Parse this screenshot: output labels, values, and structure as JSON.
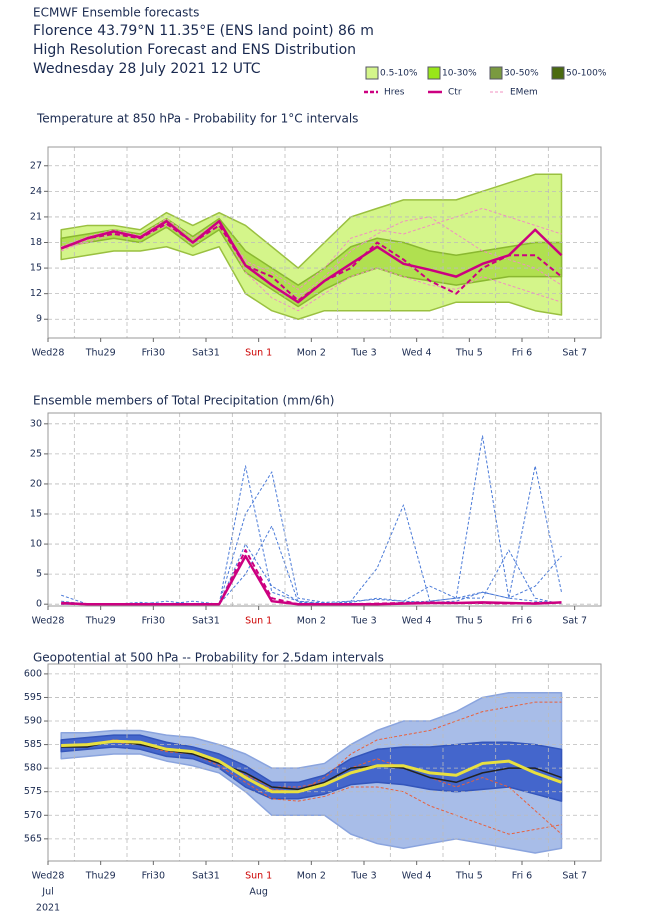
{
  "header": {
    "lines": [
      "ECMWF Ensemble forecasts",
      "Florence 43.79°N 11.35°E (ENS land point) 86 m",
      "High Resolution Forecast and ENS Distribution",
      "Wednesday 28 July 2021 12 UTC"
    ]
  },
  "legend": [
    {
      "label": "0.5-10%",
      "color": "#d4f58a",
      "style": "box"
    },
    {
      "label": "10-30%",
      "color": "#99e619",
      "style": "box"
    },
    {
      "label": "30-50%",
      "color": "#7a9a40",
      "style": "box"
    },
    {
      "label": "50-100%",
      "color": "#4a6a10",
      "style": "box"
    },
    {
      "label": "Hres",
      "color": "#cc0080",
      "style": "dashed"
    },
    {
      "label": "Ctr",
      "color": "#cc0080",
      "style": "solid"
    },
    {
      "label": "EMem",
      "color": "#f090c0",
      "style": "thin-dashed"
    }
  ],
  "chart_data": [
    {
      "type": "line",
      "title": "Temperature at 850 hPa - Probability for 1°C intervals",
      "x": [
        0.25,
        0.75,
        1.25,
        1.75,
        2.25,
        2.75,
        3.25,
        3.75,
        4.25,
        4.75,
        5.25,
        5.75,
        6.25,
        6.75,
        7.25,
        7.75,
        8.25,
        8.75,
        9.25,
        9.75
      ],
      "xlim": [
        0,
        10.5
      ],
      "xticks": [
        {
          "value": 0,
          "label": "Wed28"
        },
        {
          "value": 1,
          "label": "Thu29"
        },
        {
          "value": 2,
          "label": "Fri30"
        },
        {
          "value": 3,
          "label": "Sat31"
        },
        {
          "value": 4,
          "label": "Sun 1",
          "color": "#cc0000"
        },
        {
          "value": 5,
          "label": "Mon 2"
        },
        {
          "value": 6,
          "label": "Tue 3"
        },
        {
          "value": 7,
          "label": "Wed 4"
        },
        {
          "value": 8,
          "label": "Thu 5"
        },
        {
          "value": 9,
          "label": "Fri 6"
        },
        {
          "value": 10,
          "label": "Sat 7"
        }
      ],
      "xgrid": [
        0.5,
        1.5,
        2.5,
        3.5,
        4.5,
        5.5,
        6.5,
        7.5,
        8.5,
        9.5
      ],
      "ylim": [
        6.8,
        29.2
      ],
      "yticks": [
        9,
        12,
        15,
        18,
        21,
        24,
        27
      ],
      "grid": true,
      "bands": [
        {
          "color": "#d4f58a",
          "edge": "#9ac040",
          "upper": [
            19.5,
            20,
            20,
            19.5,
            21.5,
            20,
            21.5,
            20,
            17.5,
            15,
            18,
            21,
            22,
            23,
            23,
            23,
            24,
            25,
            26,
            26
          ],
          "lower": [
            16,
            16.5,
            17,
            17,
            17.5,
            16.5,
            17.5,
            12,
            10,
            9,
            10,
            10,
            10,
            10,
            10,
            11,
            11,
            11,
            10,
            9.5
          ]
        },
        {
          "color": "#b0e050",
          "edge": "#8ab830",
          "upper": [
            18.5,
            19,
            19.5,
            19,
            20.8,
            18.7,
            20.8,
            17,
            15,
            13,
            15,
            17.5,
            18.5,
            18,
            17,
            16.5,
            17,
            17.5,
            18,
            18
          ],
          "lower": [
            17.5,
            18,
            18.5,
            18,
            19.8,
            17.5,
            19.5,
            14.5,
            12.5,
            10.5,
            12.5,
            14,
            15,
            14,
            13.5,
            13,
            13.5,
            14,
            14,
            14
          ]
        }
      ],
      "members": {
        "color": "#f090c0",
        "values": [
          [
            17.3,
            18,
            19,
            18.5,
            20,
            18,
            20,
            16,
            13,
            11.5,
            14,
            17,
            19,
            20.5,
            21,
            19,
            17,
            16,
            15,
            13
          ],
          [
            17.5,
            18.7,
            19.5,
            18.8,
            20.8,
            18.5,
            20.5,
            14.5,
            11.5,
            10,
            12,
            14,
            15,
            14,
            13,
            12.5,
            14,
            13,
            12,
            11
          ],
          [
            17,
            18.3,
            19.2,
            18.4,
            20.3,
            17.8,
            20.2,
            15.8,
            14.5,
            12.5,
            15,
            18.5,
            19.5,
            19,
            20,
            21,
            22,
            21,
            20,
            19
          ]
        ]
      },
      "series": [
        {
          "color": "#cc0080",
          "dash": "5,3",
          "width": 2,
          "values": [
            17.3,
            18.5,
            19,
            18.5,
            20.2,
            18,
            20,
            15.3,
            14,
            11.2,
            13.5,
            15,
            18,
            16,
            13.5,
            12,
            15,
            16.5,
            16.5,
            14
          ]
        },
        {
          "color": "#cc0080",
          "dash": "",
          "width": 2.5,
          "values": [
            17.3,
            18.5,
            19.3,
            18.6,
            20.5,
            18,
            20.5,
            15.3,
            13,
            11,
            13.5,
            15.5,
            17.5,
            15.5,
            14.8,
            14,
            15.5,
            16.5,
            19.5,
            16.5
          ]
        }
      ]
    },
    {
      "type": "line",
      "title": "Ensemble members of Total Precipitation (mm/6h)",
      "x": [
        0.25,
        0.75,
        1.25,
        1.75,
        2.25,
        2.75,
        3.25,
        3.75,
        4.25,
        4.75,
        5.25,
        5.75,
        6.25,
        6.75,
        7.25,
        7.75,
        8.25,
        8.75,
        9.25,
        9.75
      ],
      "xlim": [
        0,
        10.5
      ],
      "xticks": [
        {
          "value": 0,
          "label": "Wed28"
        },
        {
          "value": 1,
          "label": "Thu29"
        },
        {
          "value": 2,
          "label": "Fri30"
        },
        {
          "value": 3,
          "label": "Sat31"
        },
        {
          "value": 4,
          "label": "Sun 1",
          "color": "#cc0000"
        },
        {
          "value": 5,
          "label": "Mon 2"
        },
        {
          "value": 6,
          "label": "Tue 3"
        },
        {
          "value": 7,
          "label": "Wed 4"
        },
        {
          "value": 8,
          "label": "Thu 5"
        },
        {
          "value": 9,
          "label": "Fri 6"
        },
        {
          "value": 10,
          "label": "Sat 7"
        }
      ],
      "xgrid": [
        0.5,
        1.5,
        2.5,
        3.5,
        4.5,
        5.5,
        6.5,
        7.5,
        8.5,
        9.5
      ],
      "ylim": [
        -0.3,
        31.8
      ],
      "yticks": [
        0,
        5,
        10,
        15,
        20,
        25,
        30
      ],
      "grid": true,
      "bands": [],
      "members": {
        "color": "#4a7ad8",
        "values": [
          [
            1.5,
            0,
            0,
            0.3,
            0,
            0,
            0,
            23,
            2,
            0.5,
            0.2,
            0,
            0,
            0.3,
            0.5,
            1,
            28,
            1,
            0.5,
            0.3
          ],
          [
            0.5,
            0,
            0,
            0,
            0.5,
            0,
            0,
            15,
            22,
            1,
            0.3,
            0.5,
            0.8,
            0.5,
            0.3,
            0.5,
            2,
            1,
            23,
            2
          ],
          [
            0,
            0,
            0,
            0,
            0,
            0,
            0,
            10,
            3,
            0.5,
            0,
            0.5,
            6,
            16.5,
            0.5,
            1,
            2,
            1,
            3,
            8
          ],
          [
            0,
            0,
            0,
            0,
            0,
            0.5,
            0,
            5,
            13,
            0.3,
            0,
            0.3,
            1,
            0.5,
            3,
            1,
            1,
            9,
            1,
            0
          ]
        ]
      },
      "series": [
        {
          "color": "#cc0080",
          "dash": "5,3",
          "width": 2,
          "values": [
            0.1,
            0,
            0,
            0,
            0,
            0,
            0,
            9,
            1,
            0,
            0,
            0,
            0.1,
            0.2,
            0.3,
            0.2,
            0.2,
            0.1,
            0.2,
            0.3
          ]
        },
        {
          "color": "#cc0080",
          "dash": "",
          "width": 2.5,
          "values": [
            0.2,
            0,
            0,
            0,
            0,
            0,
            0,
            8,
            0.5,
            0,
            0,
            0,
            0,
            0.1,
            0.2,
            0.2,
            0.3,
            0.2,
            0.1,
            0.3
          ]
        }
      ]
    },
    {
      "type": "line",
      "title": "Geopotential at 500 hPa -- Probability for 2.5dam intervals",
      "x": [
        0.25,
        0.75,
        1.25,
        1.75,
        2.25,
        2.75,
        3.25,
        3.75,
        4.25,
        4.75,
        5.25,
        5.75,
        6.25,
        6.75,
        7.25,
        7.75,
        8.25,
        8.75,
        9.25,
        9.75
      ],
      "xlim": [
        0,
        10.5
      ],
      "xticks": [
        {
          "value": 0,
          "label": "Wed28"
        },
        {
          "value": 1,
          "label": "Thu29"
        },
        {
          "value": 2,
          "label": "Fri30"
        },
        {
          "value": 3,
          "label": "Sat31"
        },
        {
          "value": 4,
          "label": "Sun 1",
          "color": "#cc0000"
        },
        {
          "value": 5,
          "label": "Mon 2"
        },
        {
          "value": 6,
          "label": "Tue 3"
        },
        {
          "value": 7,
          "label": "Wed 4"
        },
        {
          "value": 8,
          "label": "Thu 5"
        },
        {
          "value": 9,
          "label": "Fri 6"
        },
        {
          "value": 10,
          "label": "Sat 7"
        }
      ],
      "xgrid": [
        0.5,
        1.5,
        2.5,
        3.5,
        4.5,
        5.5,
        6.5,
        7.5,
        8.5,
        9.5
      ],
      "month_labels": [
        {
          "value": 0,
          "label": "Jul"
        },
        {
          "value": 4,
          "label": "Aug"
        }
      ],
      "year_label": {
        "value": 0,
        "label": "2021"
      },
      "ylim": [
        560.3,
        602.1
      ],
      "yticks": [
        565,
        570,
        575,
        580,
        585,
        590,
        595,
        600
      ],
      "grid": true,
      "bands": [
        {
          "color": "#a8bde8",
          "edge": "#8aa4de",
          "upper": [
            587.5,
            587.5,
            588,
            588,
            587,
            586.5,
            585,
            583,
            580,
            580,
            581,
            585,
            588,
            590,
            590,
            592,
            595,
            596,
            596,
            596
          ],
          "lower": [
            582,
            582.5,
            583,
            583,
            581.5,
            580.5,
            579,
            575,
            570,
            570,
            570,
            566,
            564,
            563,
            564,
            565,
            564,
            563,
            562,
            563
          ]
        },
        {
          "color": "#4466cc",
          "edge": "#3355bb",
          "upper": [
            586,
            586.5,
            587,
            587,
            585.5,
            584.5,
            583,
            580.5,
            577,
            577,
            578.5,
            582,
            584,
            584.5,
            584.5,
            585,
            585.5,
            585.5,
            585,
            584
          ],
          "lower": [
            583.5,
            584,
            584.5,
            584,
            582.5,
            582,
            580,
            576,
            573.5,
            573.5,
            574.5,
            576.5,
            577,
            576.5,
            575.5,
            575,
            575.5,
            576,
            574.5,
            573
          ]
        }
      ],
      "members": {
        "color": "#e8603c",
        "values": [
          [
            584.5,
            585,
            586,
            585.5,
            584,
            583.5,
            581.5,
            578,
            575.5,
            575,
            578,
            583,
            586,
            587,
            588,
            590,
            592,
            593,
            594,
            594
          ],
          [
            584.8,
            585.2,
            585.5,
            585,
            583.5,
            583,
            580.5,
            577,
            573.5,
            573,
            574,
            576,
            576,
            575,
            572,
            570,
            568,
            566,
            567,
            568
          ],
          [
            584.6,
            585,
            585.8,
            585.3,
            584.2,
            583.2,
            581,
            578.5,
            576,
            576,
            577,
            580,
            582,
            580,
            578,
            576,
            578,
            576,
            571,
            566
          ]
        ]
      },
      "series": [
        {
          "color": "#222222",
          "dash": "",
          "width": 1.5,
          "values": [
            584.5,
            584.5,
            585.8,
            585,
            583.8,
            583,
            581,
            579,
            576,
            575.5,
            577,
            580,
            580.5,
            580,
            578,
            577,
            579,
            580,
            580,
            578
          ]
        },
        {
          "color": "#e8e040",
          "dash": "",
          "width": 3,
          "values": [
            584.8,
            585,
            585.7,
            585.5,
            584,
            583.5,
            581.5,
            578,
            575,
            575,
            576.5,
            579,
            580.5,
            580.5,
            579,
            578.5,
            581,
            581.5,
            579,
            577
          ]
        }
      ]
    }
  ]
}
